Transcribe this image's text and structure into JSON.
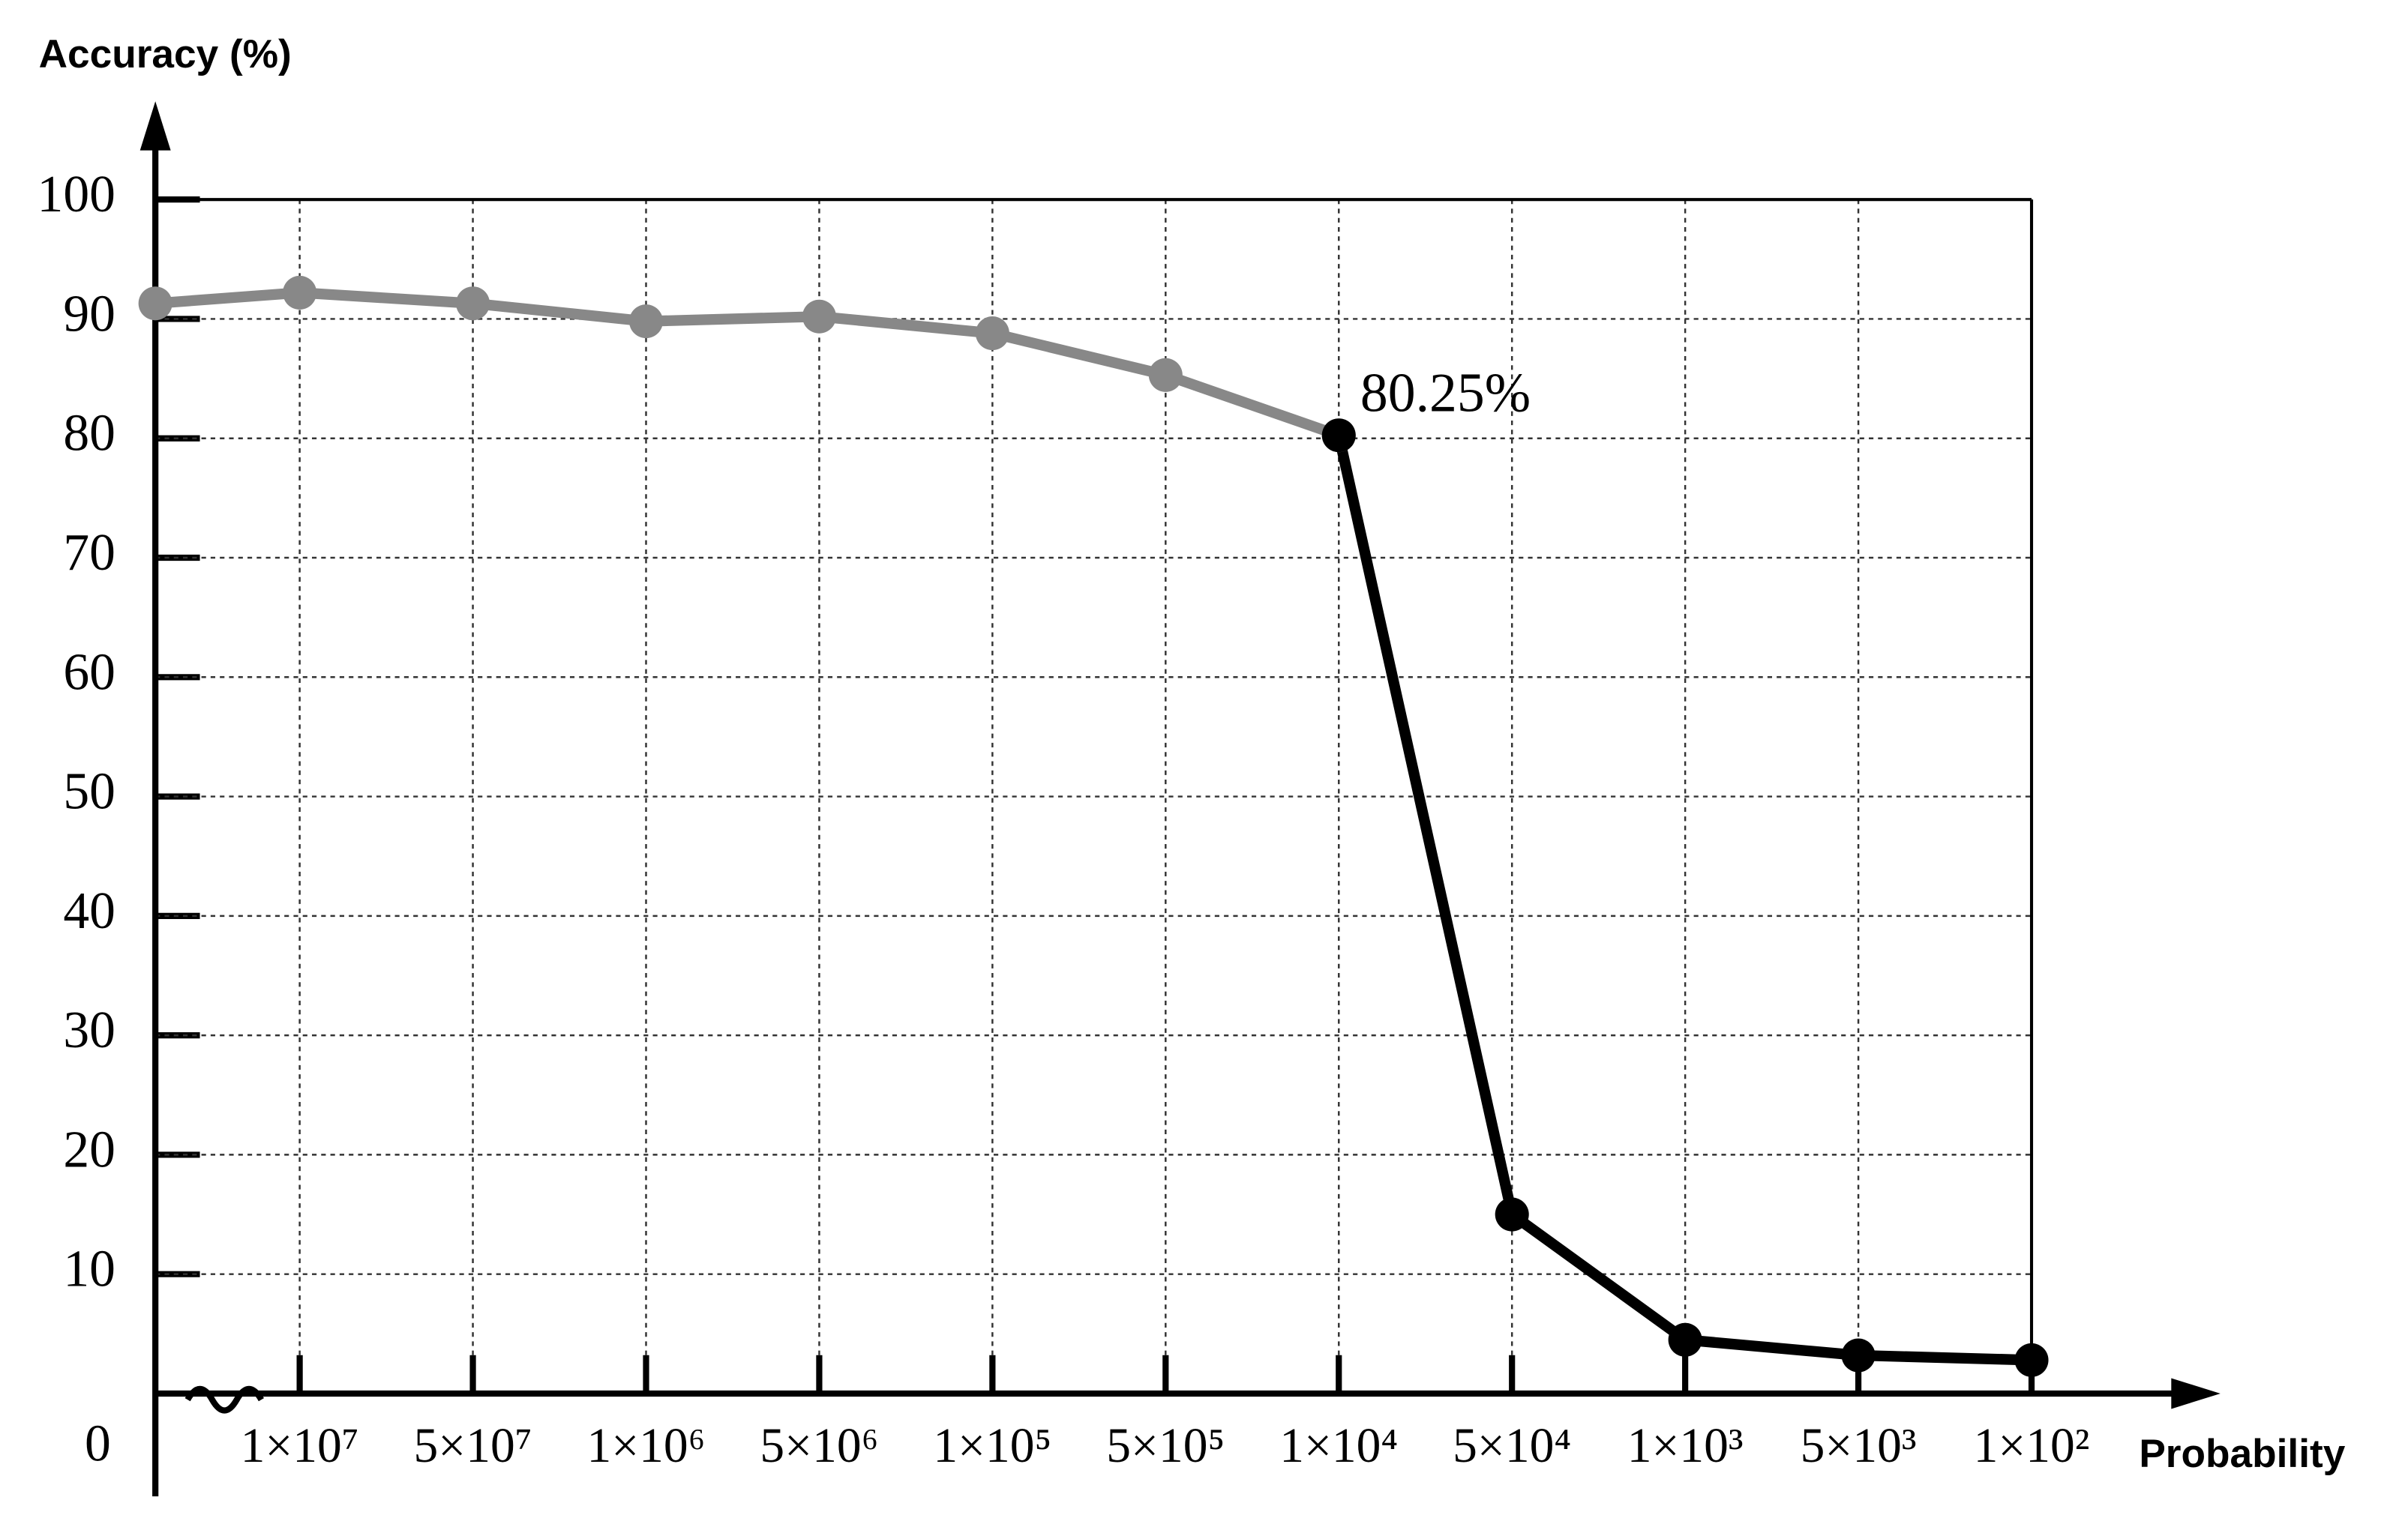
{
  "chart_data": {
    "type": "line",
    "y_label": "Accuracy (%)",
    "x_label": "Probability",
    "categories": [
      null,
      "1×10⁷",
      "5×10⁷",
      "1×10⁶",
      "5×10⁶",
      "1×10⁵",
      "5×10⁵",
      "1×10⁴",
      "5×10⁴",
      "1×10³",
      "5×10³",
      "1×10²"
    ],
    "series": [
      {
        "name": null,
        "color": "#888888",
        "values": [
          91.3,
          92.2,
          91.3,
          89.8,
          90.2,
          88.8,
          85.3,
          80.25,
          null,
          null,
          null,
          null
        ]
      },
      {
        "name": null,
        "color": "#000000",
        "values": [
          null,
          null,
          null,
          null,
          null,
          null,
          null,
          80.25,
          15,
          4.5,
          3.2,
          2.8
        ],
        "value_labels": [
          null,
          null,
          null,
          null,
          null,
          null,
          null,
          "80.25%",
          null,
          null,
          null,
          null
        ]
      }
    ],
    "ylim": [
      0,
      100
    ],
    "yticks": [
      0,
      10,
      20,
      30,
      40,
      50,
      60,
      70,
      80,
      90,
      100
    ],
    "grid": true
  }
}
